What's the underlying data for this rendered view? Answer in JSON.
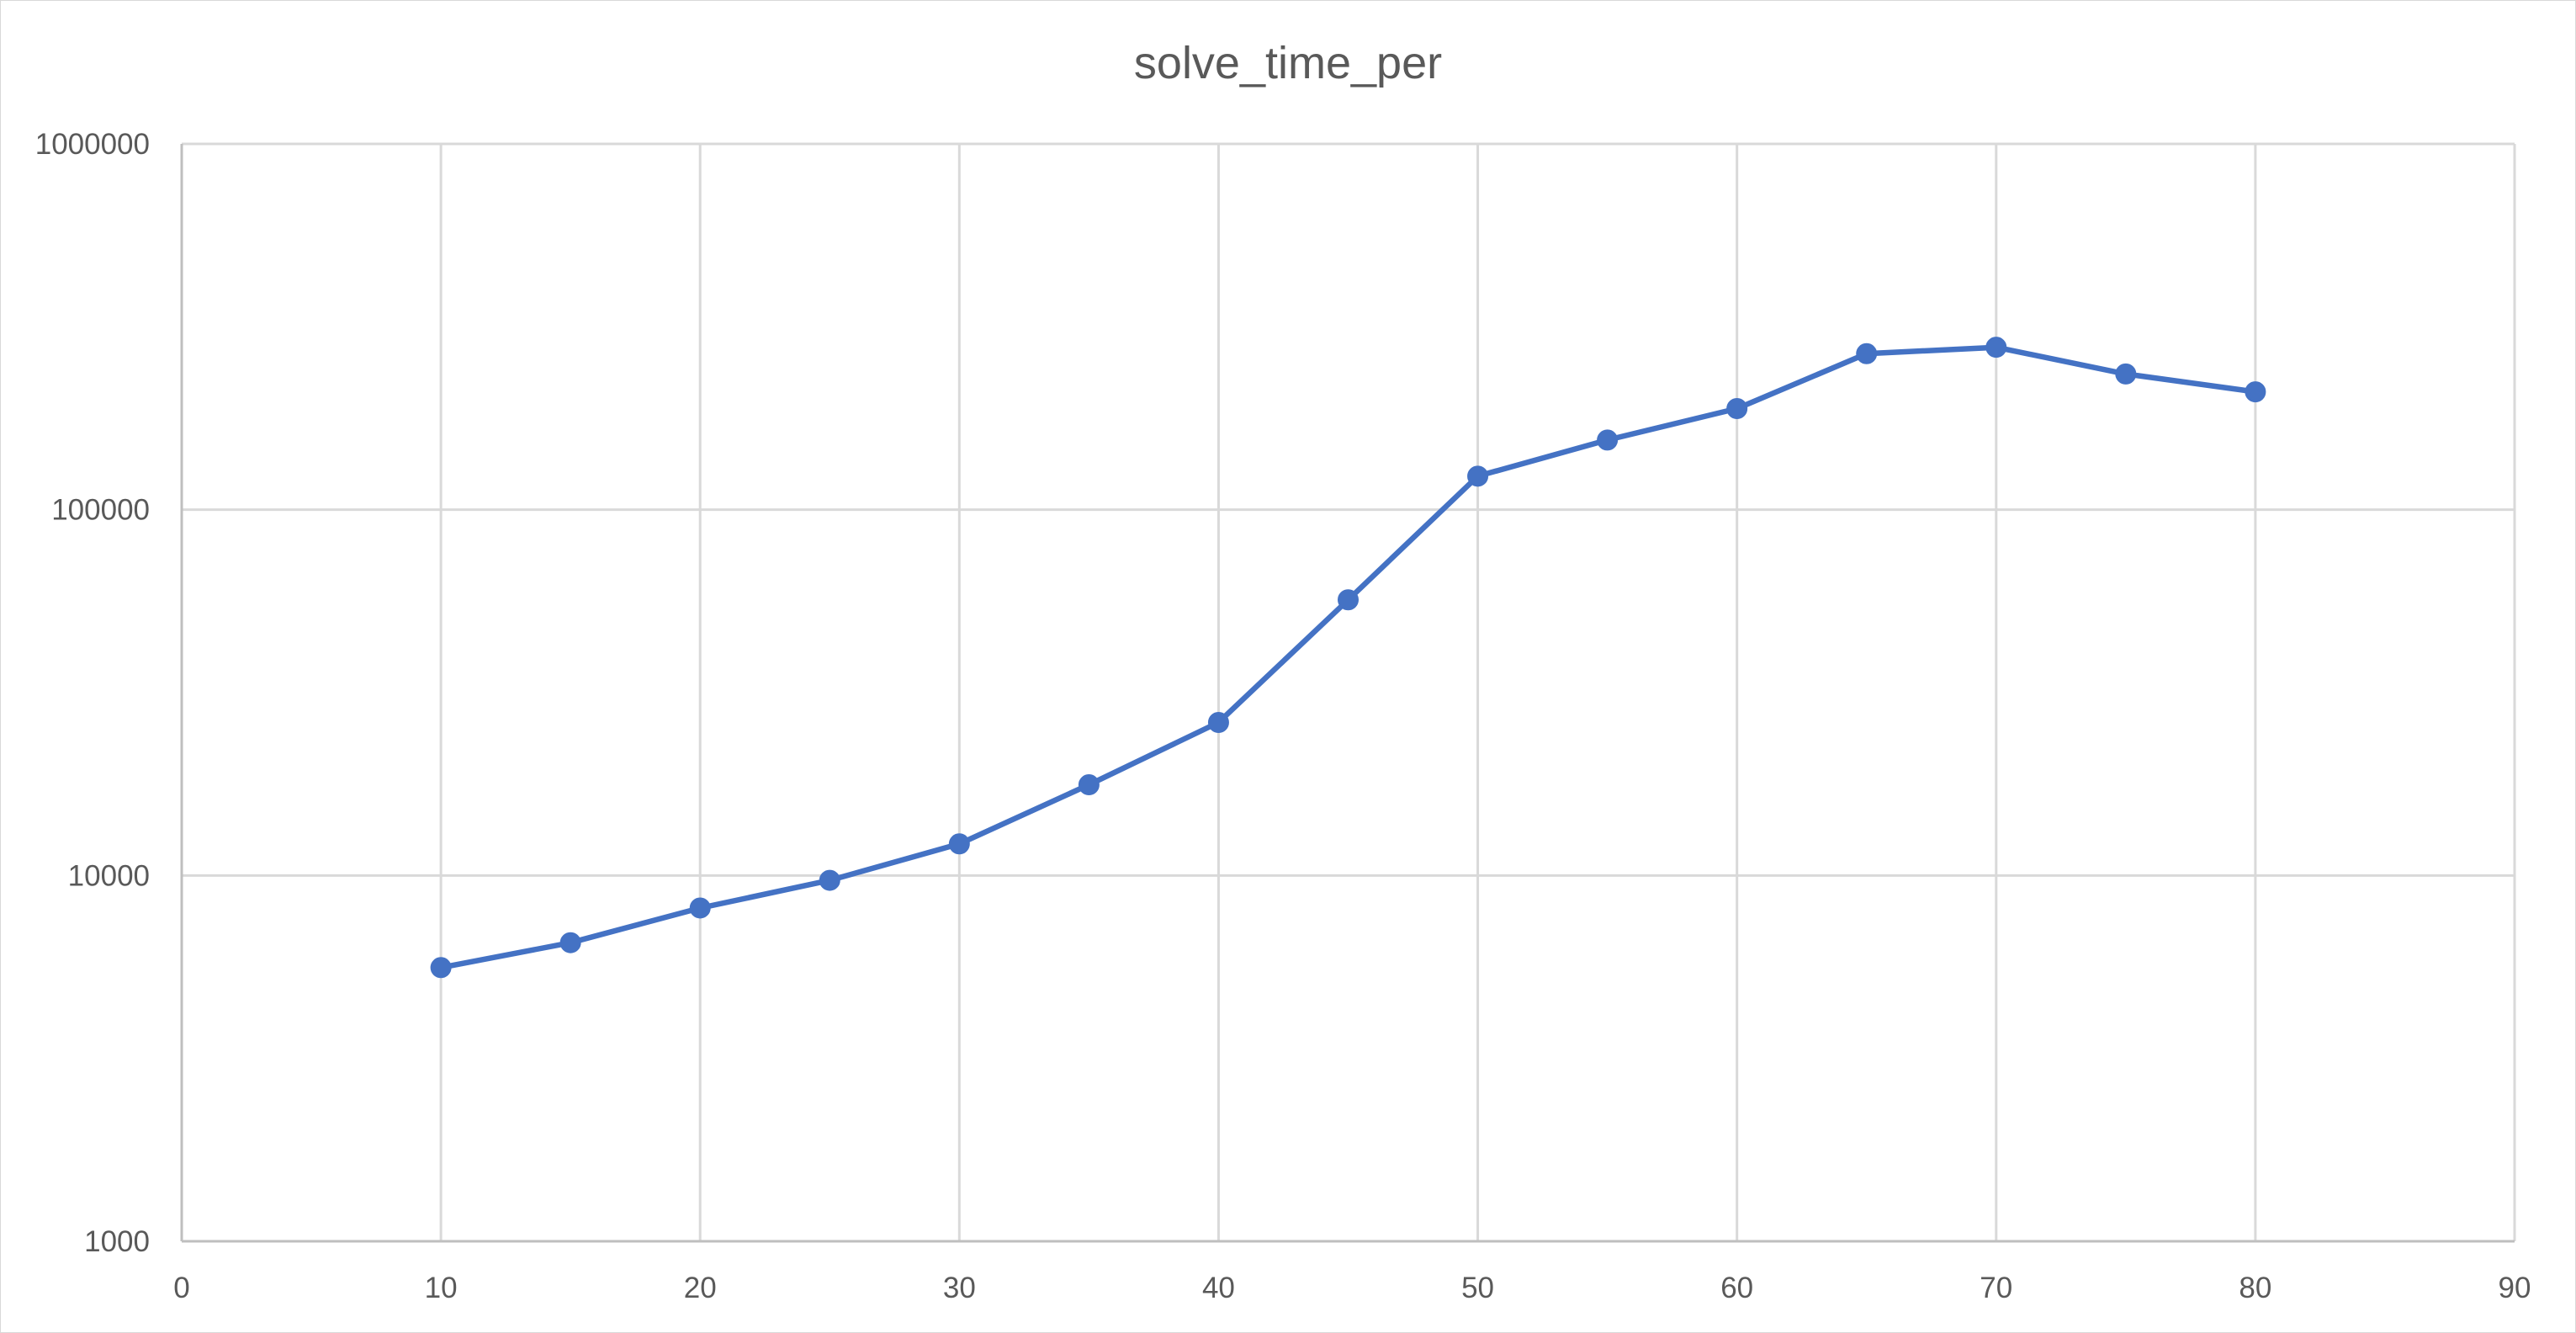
{
  "chart_data": {
    "type": "line",
    "title": "solve_time_per",
    "xlabel": "",
    "ylabel": "",
    "xlim": [
      0,
      90
    ],
    "ylim": [
      1000,
      1000000
    ],
    "yscale": "log",
    "grid": true,
    "legend": "none",
    "x_ticks": [
      "0",
      "10",
      "20",
      "30",
      "40",
      "50",
      "60",
      "70",
      "80",
      "90"
    ],
    "y_ticks": [
      "1000",
      "10000",
      "100000",
      "1000000"
    ],
    "series": [
      {
        "color": "#4472c4",
        "marker": "circle",
        "x": [
          10,
          15,
          20,
          25,
          30,
          35,
          40,
          45,
          50,
          55,
          60,
          65,
          70,
          75,
          80
        ],
        "y": [
          5600,
          6550,
          8150,
          9700,
          12200,
          17700,
          26200,
          56700,
          123500,
          155000,
          189000,
          267000,
          278000,
          235000,
          210000
        ]
      }
    ]
  }
}
